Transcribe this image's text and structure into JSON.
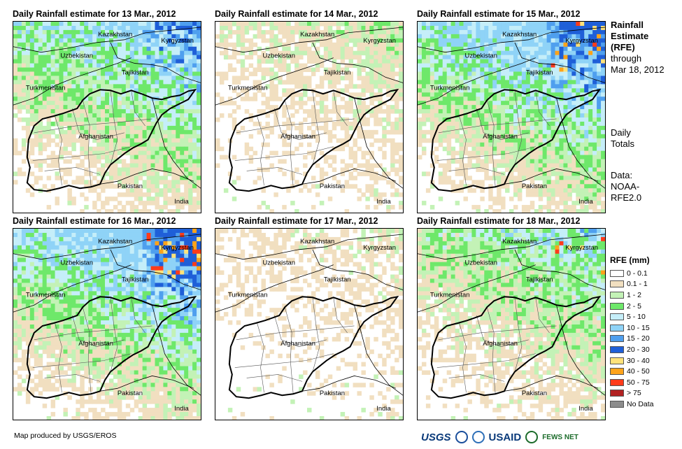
{
  "panels": [
    {
      "title": "Daily Rainfall estimate for 13 Mar., 2012",
      "wet": 0.62,
      "heavy": 0.0
    },
    {
      "title": "Daily Rainfall estimate for 14 Mar., 2012",
      "wet": 0.3,
      "heavy": 0.0
    },
    {
      "title": "Daily Rainfall estimate for 15 Mar., 2012",
      "wet": 0.7,
      "heavy": 0.02
    },
    {
      "title": "Daily Rainfall estimate for 16 Mar., 2012",
      "wet": 0.72,
      "heavy": 0.05
    },
    {
      "title": "Daily Rainfall estimate for 17 Mar., 2012",
      "wet": 0.22,
      "heavy": 0.0
    },
    {
      "title": "Daily Rainfall estimate for 18 Mar., 2012",
      "wet": 0.5,
      "heavy": 0.01
    }
  ],
  "countries": [
    "Kazakhstan",
    "Kyrgyzstan",
    "Uzbekistan",
    "Tajikistan",
    "Turkmenistan",
    "Afghanistan",
    "Pakistan",
    "India"
  ],
  "side": {
    "title_lines": [
      "Rainfall",
      "Estimate",
      "(RFE)"
    ],
    "through_lines": [
      "through",
      "Mar 18, 2012"
    ],
    "totals_lines": [
      "Daily",
      "Totals"
    ],
    "data_lines": [
      "Data:",
      "NOAA-",
      "RFE2.0"
    ]
  },
  "legend": {
    "title": "RFE (mm)",
    "items": [
      {
        "label": "0 - 0.1",
        "color": "#ffffff"
      },
      {
        "label": "0.1 - 1",
        "color": "#f1dfc0"
      },
      {
        "label": "1 - 2",
        "color": "#c3f2b6"
      },
      {
        "label": "2 - 5",
        "color": "#6ee86a"
      },
      {
        "label": "5 - 10",
        "color": "#c5eef9"
      },
      {
        "label": "10 - 15",
        "color": "#8fd3f7"
      },
      {
        "label": "15 - 20",
        "color": "#4f9fee"
      },
      {
        "label": "20 - 30",
        "color": "#1f5fd8"
      },
      {
        "label": "30 - 40",
        "color": "#ffe27a"
      },
      {
        "label": "40 - 50",
        "color": "#ffa31a"
      },
      {
        "label": "50 - 75",
        "color": "#ff3b1a"
      },
      {
        "label": "> 75",
        "color": "#b22222"
      },
      {
        "label": "No Data",
        "color": "#8c8c8c"
      }
    ]
  },
  "credit": "Map produced by USGS/EROS",
  "logos": {
    "usgs": "USGS",
    "usaid": "USAID",
    "fews": "FEWS NET"
  }
}
